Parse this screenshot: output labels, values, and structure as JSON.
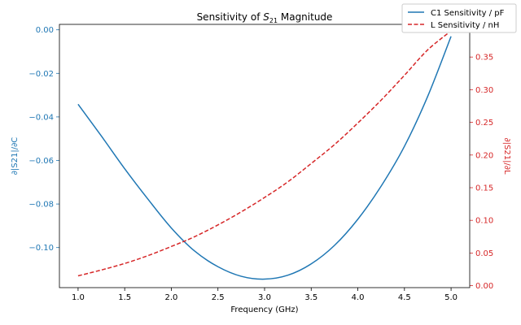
{
  "chart_data": {
    "type": "line",
    "title_prefix": "Sensitivity of ",
    "title_symbol": "S",
    "title_subscript": "21",
    "title_suffix": " Magnitude",
    "xlabel": "Frequency (GHz)",
    "ylabel_left": "∂|S21|/∂C",
    "ylabel_right": "∂|S21|/∂L",
    "xlim": [
      0.8,
      5.2
    ],
    "ylim_left": [
      -0.1184,
      0.0025
    ],
    "ylim_right": [
      -0.003,
      0.4
    ],
    "x_ticks": [
      "1.0",
      "1.5",
      "2.0",
      "2.5",
      "3.0",
      "3.5",
      "4.0",
      "4.5",
      "5.0"
    ],
    "y_ticks_left": [
      "0.00",
      "−0.02",
      "−0.04",
      "−0.06",
      "−0.08",
      "−0.10"
    ],
    "y_ticks_right": [
      "0.00",
      "0.05",
      "0.10",
      "0.15",
      "0.20",
      "0.25",
      "0.30",
      "0.35"
    ],
    "grid": false,
    "legend_position": "top-right",
    "colors": {
      "left": "#1f77b4",
      "right": "#d62728"
    },
    "series": [
      {
        "name": "C1 Sensitivity / pF",
        "axis": "left",
        "style": "solid",
        "x": [
          1.0,
          1.25,
          1.5,
          1.75,
          2.0,
          2.25,
          2.5,
          2.75,
          3.0,
          3.25,
          3.5,
          3.75,
          4.0,
          4.25,
          4.5,
          4.75,
          5.0
        ],
        "values": [
          -0.0342,
          -0.0488,
          -0.0638,
          -0.0778,
          -0.091,
          -0.1016,
          -0.1088,
          -0.1132,
          -0.1145,
          -0.1127,
          -0.1075,
          -0.099,
          -0.087,
          -0.0718,
          -0.0535,
          -0.0305,
          -0.003
        ]
      },
      {
        "name": "L Sensitivity / nH",
        "axis": "right",
        "style": "dashed",
        "x": [
          1.0,
          1.25,
          1.5,
          1.75,
          2.0,
          2.25,
          2.5,
          2.75,
          3.0,
          3.25,
          3.5,
          3.75,
          4.0,
          4.25,
          4.5,
          4.75,
          5.0
        ],
        "values": [
          0.015,
          0.024,
          0.034,
          0.046,
          0.06,
          0.075,
          0.093,
          0.113,
          0.135,
          0.159,
          0.187,
          0.216,
          0.249,
          0.284,
          0.322,
          0.361,
          0.39
        ]
      }
    ]
  }
}
